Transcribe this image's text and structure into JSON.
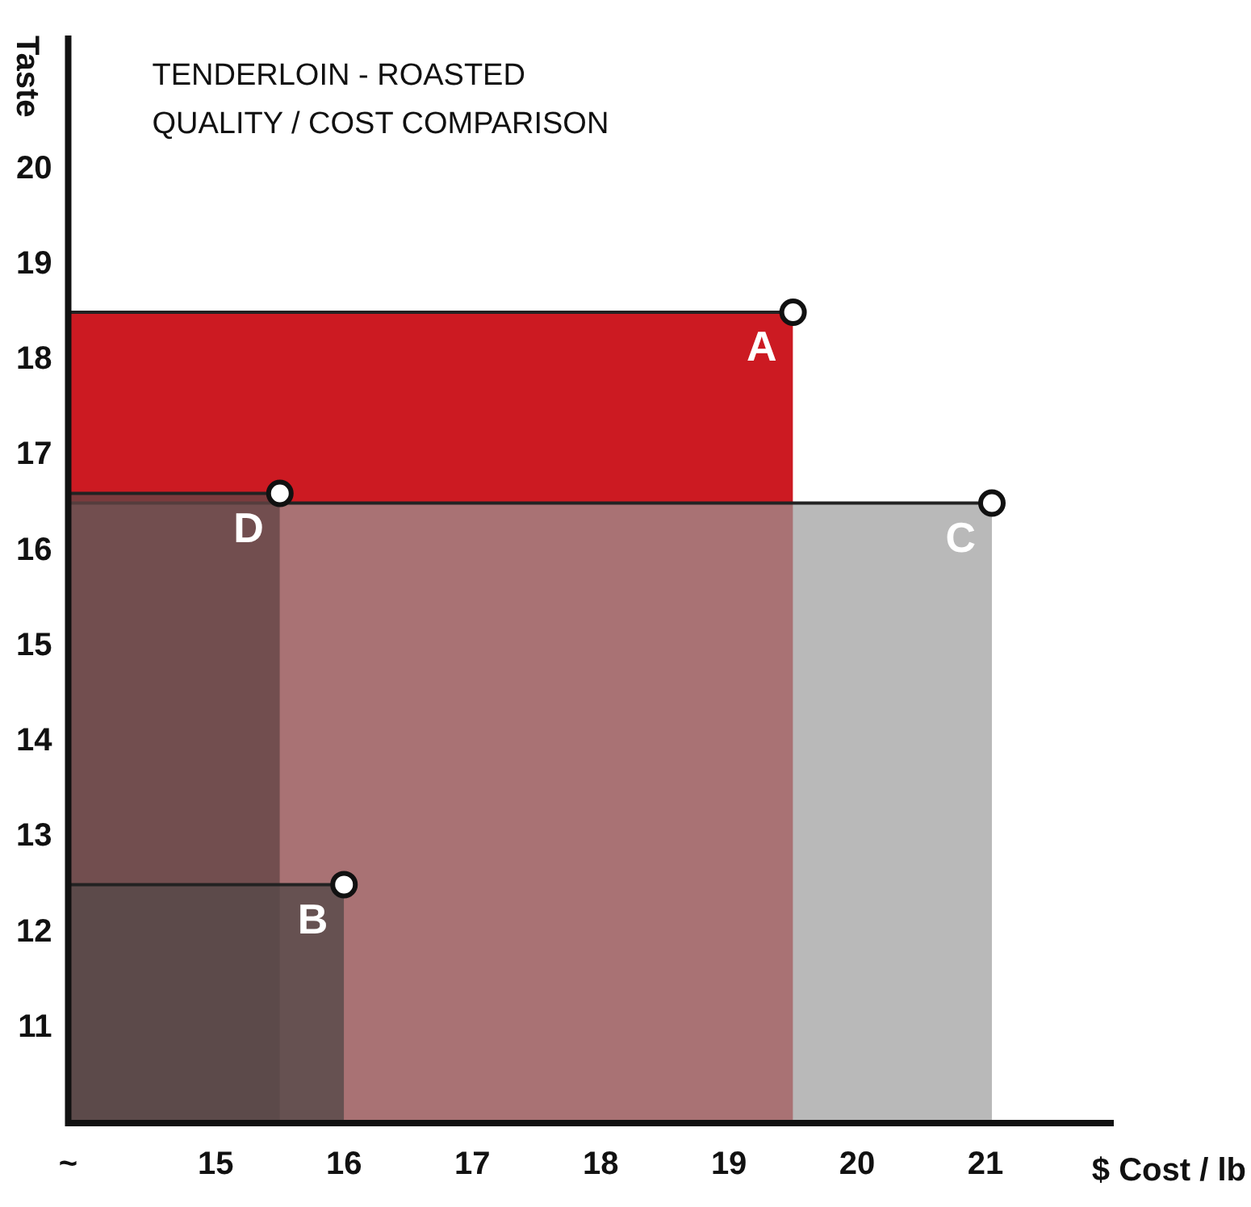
{
  "chart_data": {
    "type": "area",
    "title": "TENDERLOIN - ROASTED",
    "subtitle": "QUALITY / COST COMPARISON",
    "xlabel": "$ Cost / lb",
    "ylabel": "Taste",
    "series": [
      {
        "name": "A",
        "color": "#cc1a22",
        "x": [
          13.85,
          19.5
        ],
        "values": [
          18.5,
          18.5
        ]
      },
      {
        "name": "C",
        "color": "#999999",
        "x": [
          13.85,
          21.05
        ],
        "values": [
          16.5,
          16.5
        ]
      },
      {
        "name": "D",
        "color": "#634545",
        "x": [
          13.85,
          15.5
        ],
        "values": [
          16.6,
          16.6
        ]
      },
      {
        "name": "B",
        "color": "#574a4a",
        "x": [
          13.85,
          16
        ],
        "values": [
          12.5,
          12.5
        ]
      }
    ],
    "xlim": [
      13.85,
      22
    ],
    "xticks": [
      {
        "value": 13.85,
        "label": "~"
      },
      15,
      16,
      17,
      18,
      19,
      20,
      21
    ],
    "ylim": [
      10,
      21.4
    ],
    "yticks": [
      11,
      12,
      13,
      14,
      15,
      16,
      17,
      18,
      19,
      20
    ],
    "grid": false,
    "legend": false,
    "marker": "circle"
  }
}
